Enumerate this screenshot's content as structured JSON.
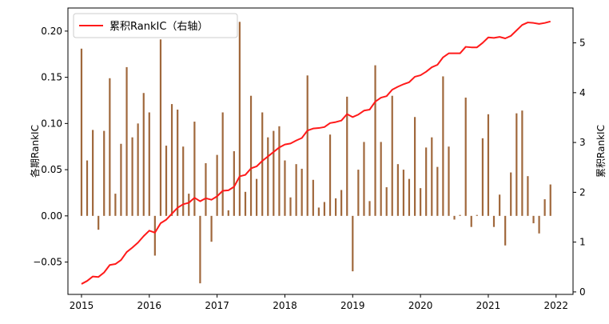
{
  "chart_data": {
    "type": "bar+line",
    "ylabel": "各期RankIC",
    "y2label": "累积RankIC",
    "legend_placement": "top-left",
    "grid": false,
    "xlim": [
      2014.8,
      2022.25
    ],
    "ylim": [
      -0.085,
      0.225
    ],
    "y2lim": [
      -0.05,
      5.7
    ],
    "x_ticks": [
      2015,
      2016,
      2017,
      2018,
      2019,
      2020,
      2021,
      2022
    ],
    "x_tick_labels": [
      "2015",
      "2016",
      "2017",
      "2018",
      "2019",
      "2020",
      "2021",
      "2022"
    ],
    "y_ticks": [
      -0.05,
      0.0,
      0.05,
      0.1,
      0.15,
      0.2
    ],
    "y_tick_labels": [
      "−0.05",
      "0.00",
      "0.05",
      "0.10",
      "0.15",
      "0.20"
    ],
    "y2_ticks": [
      0,
      1,
      2,
      3,
      4,
      5
    ],
    "y2_tick_labels": [
      "0",
      "1",
      "2",
      "3",
      "4",
      "5"
    ],
    "colors": {
      "bar": "#a0683c",
      "line": "#ff1a1a"
    },
    "bar_series": {
      "x": [
        2015.0,
        2015.083,
        2015.167,
        2015.25,
        2015.333,
        2015.417,
        2015.5,
        2015.583,
        2015.667,
        2015.75,
        2015.833,
        2015.917,
        2016.0,
        2016.083,
        2016.167,
        2016.25,
        2016.333,
        2016.417,
        2016.5,
        2016.583,
        2016.667,
        2016.75,
        2016.833,
        2016.917,
        2017.0,
        2017.083,
        2017.167,
        2017.25,
        2017.333,
        2017.417,
        2017.5,
        2017.583,
        2017.667,
        2017.75,
        2017.833,
        2017.917,
        2018.0,
        2018.083,
        2018.167,
        2018.25,
        2018.333,
        2018.417,
        2018.5,
        2018.583,
        2018.667,
        2018.75,
        2018.833,
        2018.917,
        2019.0,
        2019.083,
        2019.167,
        2019.25,
        2019.333,
        2019.417,
        2019.5,
        2019.583,
        2019.667,
        2019.75,
        2019.833,
        2019.917,
        2020.0,
        2020.083,
        2020.167,
        2020.25,
        2020.333,
        2020.417,
        2020.5,
        2020.583,
        2020.667,
        2020.75,
        2020.833,
        2020.917,
        2021.0,
        2021.083,
        2021.167,
        2021.25,
        2021.333,
        2021.417,
        2021.5,
        2021.583,
        2021.667,
        2021.75,
        2021.833,
        2021.917
      ],
      "values": [
        0.181,
        0.06,
        0.093,
        -0.015,
        0.092,
        0.149,
        0.024,
        0.078,
        0.161,
        0.085,
        0.1,
        0.133,
        0.112,
        -0.043,
        0.191,
        0.076,
        0.121,
        0.115,
        0.075,
        0.024,
        0.102,
        -0.073,
        0.057,
        -0.028,
        0.066,
        0.112,
        0.006,
        0.07,
        0.21,
        0.026,
        0.13,
        0.04,
        0.112,
        0.085,
        0.092,
        0.097,
        0.06,
        0.02,
        0.056,
        0.051,
        0.152,
        0.039,
        0.009,
        0.015,
        0.088,
        0.019,
        0.028,
        0.129,
        -0.06,
        0.05,
        0.08,
        0.016,
        0.163,
        0.08,
        0.031,
        0.13,
        0.056,
        0.05,
        0.04,
        0.107,
        0.03,
        0.074,
        0.085,
        0.053,
        0.151,
        0.075,
        -0.004,
        0.001,
        0.128,
        -0.012,
        0.001,
        0.084,
        0.11,
        -0.012,
        0.023,
        -0.032,
        0.047,
        0.111,
        0.114,
        0.043,
        -0.008,
        -0.019,
        0.018,
        0.034
      ]
    },
    "line_series": {
      "name": "累积RankIC（右轴）",
      "x": [
        2015.0,
        2015.083,
        2015.167,
        2015.25,
        2015.333,
        2015.417,
        2015.5,
        2015.583,
        2015.667,
        2015.75,
        2015.833,
        2015.917,
        2016.0,
        2016.083,
        2016.167,
        2016.25,
        2016.333,
        2016.417,
        2016.5,
        2016.583,
        2016.667,
        2016.75,
        2016.833,
        2016.917,
        2017.0,
        2017.083,
        2017.167,
        2017.25,
        2017.333,
        2017.417,
        2017.5,
        2017.583,
        2017.667,
        2017.75,
        2017.833,
        2017.917,
        2018.0,
        2018.083,
        2018.167,
        2018.25,
        2018.333,
        2018.417,
        2018.5,
        2018.583,
        2018.667,
        2018.75,
        2018.833,
        2018.917,
        2019.0,
        2019.083,
        2019.167,
        2019.25,
        2019.333,
        2019.417,
        2019.5,
        2019.583,
        2019.667,
        2019.75,
        2019.833,
        2019.917,
        2020.0,
        2020.083,
        2020.167,
        2020.25,
        2020.333,
        2020.417,
        2020.5,
        2020.583,
        2020.667,
        2020.75,
        2020.833,
        2020.917,
        2021.0,
        2021.083,
        2021.167,
        2021.25,
        2021.333,
        2021.417,
        2021.5,
        2021.583,
        2021.667,
        2021.75,
        2021.833,
        2021.917
      ],
      "values": [
        0.16,
        0.22,
        0.31,
        0.3,
        0.39,
        0.54,
        0.56,
        0.64,
        0.8,
        0.89,
        0.99,
        1.12,
        1.23,
        1.19,
        1.38,
        1.45,
        1.57,
        1.69,
        1.76,
        1.79,
        1.89,
        1.82,
        1.88,
        1.85,
        1.92,
        2.03,
        2.04,
        2.11,
        2.32,
        2.35,
        2.48,
        2.52,
        2.63,
        2.72,
        2.81,
        2.9,
        2.96,
        2.98,
        3.04,
        3.09,
        3.24,
        3.28,
        3.29,
        3.31,
        3.39,
        3.41,
        3.44,
        3.57,
        3.51,
        3.56,
        3.64,
        3.66,
        3.82,
        3.9,
        3.93,
        4.06,
        4.12,
        4.17,
        4.21,
        4.32,
        4.35,
        4.42,
        4.51,
        4.56,
        4.71,
        4.79,
        4.79,
        4.79,
        4.92,
        4.91,
        4.91,
        5.0,
        5.11,
        5.1,
        5.12,
        5.09,
        5.14,
        5.25,
        5.36,
        5.41,
        5.4,
        5.38,
        5.4,
        5.43
      ]
    }
  }
}
